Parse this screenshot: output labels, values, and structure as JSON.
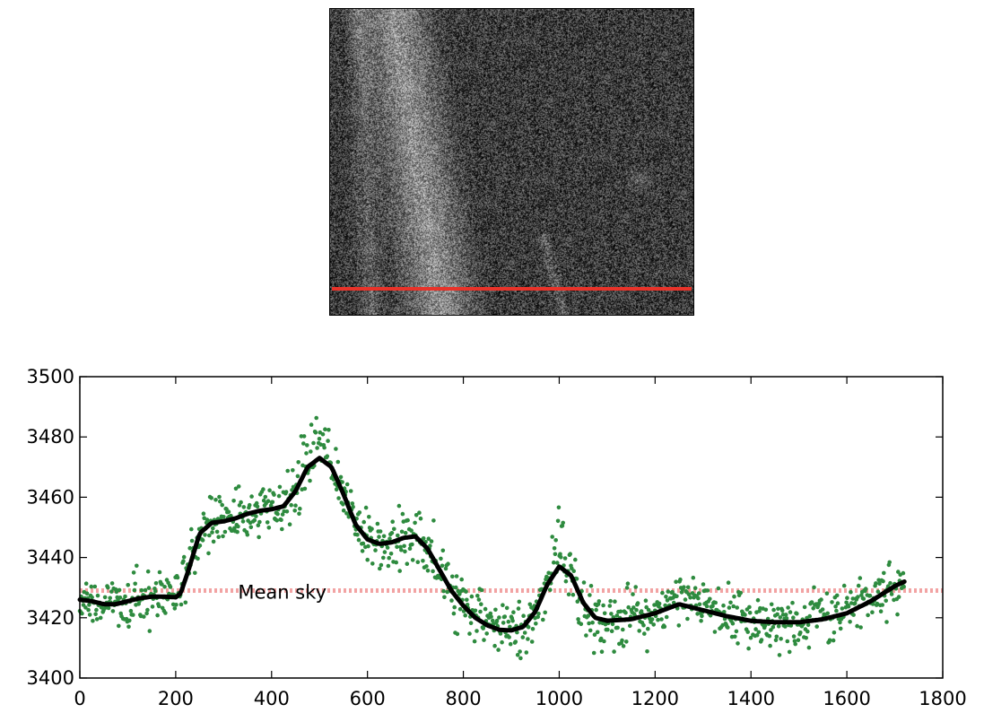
{
  "chart_data": [
    {
      "type": "image",
      "annotations": [
        {
          "kind": "horizontal-line",
          "color": "#e8332a",
          "label": "",
          "position_fraction_from_top": 0.915
        }
      ]
    },
    {
      "type": "scatter",
      "title": "",
      "xlabel": "",
      "ylabel": "",
      "xlim": [
        0,
        1800
      ],
      "ylim": [
        3400,
        3500
      ],
      "x_ticks": [
        0,
        200,
        400,
        600,
        800,
        1000,
        1200,
        1400,
        1600,
        1800
      ],
      "y_ticks": [
        3400,
        3420,
        3440,
        3460,
        3480,
        3500
      ],
      "grid": false,
      "series": [
        {
          "kind": "scatter",
          "color": "#2e8b3f",
          "description_of_points": "noisy pixel values scattered around the smooth curve, spread about ±8",
          "x_range": [
            0,
            1720
          ]
        },
        {
          "kind": "line",
          "color": "#000000",
          "smooth": true,
          "x": [
            0,
            25,
            50,
            75,
            100,
            125,
            150,
            175,
            200,
            210,
            225,
            250,
            275,
            300,
            325,
            350,
            375,
            400,
            425,
            450,
            475,
            500,
            525,
            550,
            575,
            600,
            625,
            650,
            675,
            700,
            725,
            750,
            775,
            800,
            825,
            850,
            875,
            900,
            925,
            950,
            975,
            1000,
            1025,
            1050,
            1075,
            1100,
            1150,
            1200,
            1250,
            1300,
            1350,
            1400,
            1450,
            1500,
            1550,
            1600,
            1650,
            1700,
            1720
          ],
          "y": [
            3426,
            3425.5,
            3424.5,
            3424.5,
            3425.5,
            3426.5,
            3427,
            3427,
            3426.8,
            3428,
            3435,
            3448,
            3451.5,
            3452,
            3453,
            3454.5,
            3455.5,
            3456,
            3457,
            3462,
            3470,
            3473,
            3470,
            3461,
            3451,
            3446,
            3444.5,
            3445,
            3446.5,
            3447,
            3443,
            3436,
            3429,
            3424,
            3420,
            3417.5,
            3416,
            3415.8,
            3417,
            3422,
            3431,
            3437,
            3434,
            3425,
            3420,
            3419,
            3419.5,
            3421.5,
            3424.5,
            3422.5,
            3420.5,
            3419,
            3418.5,
            3418.5,
            3419.5,
            3421.5,
            3425.5,
            3430.5,
            3432
          ]
        },
        {
          "kind": "hline",
          "name": "Mean sky",
          "color": "#f2a3a3",
          "dashed": true,
          "y": 3429
        }
      ],
      "annotations": [
        {
          "text": "Mean sky",
          "x": 330,
          "y": 3429
        }
      ]
    }
  ]
}
